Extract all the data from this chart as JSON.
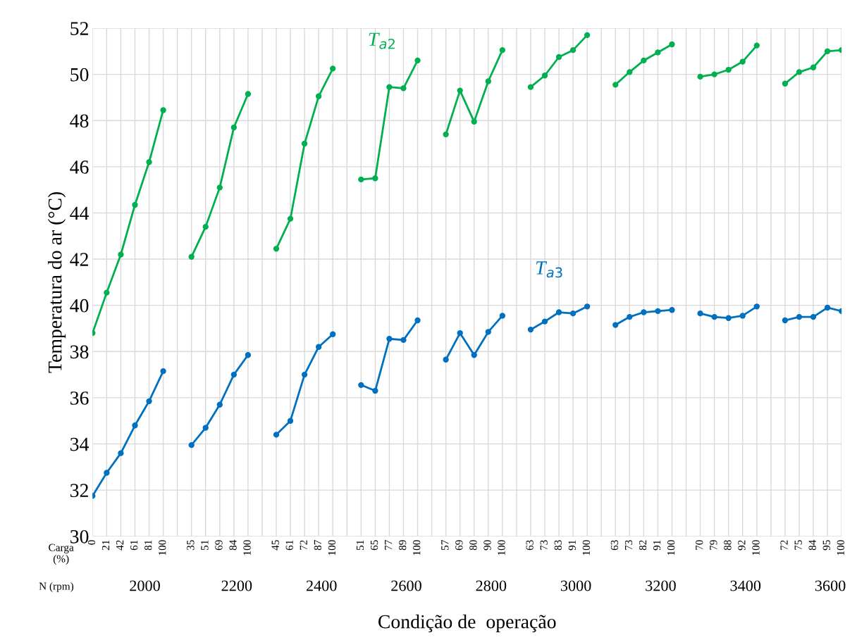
{
  "chart_data": {
    "type": "line",
    "xlabel": "Condição de  operação",
    "ylabel": "Temperatura do ar (°C)",
    "categories": [
      "0",
      "21",
      "42",
      "61",
      "81",
      "100",
      null,
      "35",
      "51",
      "69",
      "84",
      "100",
      null,
      "45",
      "61",
      "72",
      "87",
      "100",
      null,
      "51",
      "65",
      "77",
      "89",
      "100",
      null,
      "57",
      "69",
      "80",
      "90",
      "100",
      null,
      "63",
      "73",
      "83",
      "91",
      "100",
      null,
      "63",
      "73",
      "82",
      "91",
      "100",
      null,
      "70",
      "79",
      "88",
      "92",
      "100",
      null,
      "72",
      "75",
      "84",
      "95",
      "100"
    ],
    "series": [
      {
        "name": "T$_{a2}$",
        "color": "#00b050",
        "values": [
          38.8,
          40.55,
          42.2,
          44.35,
          46.2,
          48.45,
          null,
          42.1,
          43.4,
          45.1,
          47.7,
          49.15,
          null,
          42.45,
          43.75,
          47.0,
          49.05,
          50.25,
          null,
          45.45,
          45.5,
          49.45,
          49.4,
          50.6,
          null,
          47.4,
          49.3,
          47.95,
          49.7,
          51.05,
          null,
          49.45,
          49.95,
          50.75,
          51.05,
          51.7,
          null,
          49.55,
          50.1,
          50.6,
          50.95,
          51.3,
          null,
          49.9,
          50.0,
          50.2,
          50.55,
          51.25,
          null,
          49.6,
          50.1,
          50.3,
          51.0,
          51.05
        ]
      },
      {
        "name": "T$_{a3}$",
        "color": "#0070c0",
        "values": [
          31.75,
          32.75,
          33.6,
          34.8,
          35.85,
          37.15,
          null,
          33.95,
          34.7,
          35.7,
          37.0,
          37.85,
          null,
          34.4,
          35.0,
          37.0,
          38.2,
          38.75,
          null,
          36.55,
          36.3,
          38.55,
          38.5,
          39.35,
          null,
          37.65,
          38.8,
          37.85,
          38.85,
          39.55,
          null,
          38.95,
          39.3,
          39.7,
          39.65,
          39.95,
          null,
          39.15,
          39.5,
          39.7,
          39.75,
          39.8,
          null,
          39.65,
          39.5,
          39.45,
          39.55,
          39.95,
          null,
          39.35,
          39.5,
          39.5,
          39.9,
          39.75
        ]
      }
    ],
    "ylim": [
      30,
      52
    ],
    "yticks": [
      30,
      32,
      34,
      36,
      38,
      40,
      42,
      44,
      46,
      48,
      50,
      52
    ],
    "grid": true,
    "marker": "circle",
    "line_style": "solid",
    "legend": false,
    "annotations": [
      "Carga\n(%)",
      "N (rpm)",
      "2000",
      "2200",
      "2400",
      "2600",
      "2800",
      "3000",
      "3200",
      "3400",
      "3600"
    ]
  }
}
